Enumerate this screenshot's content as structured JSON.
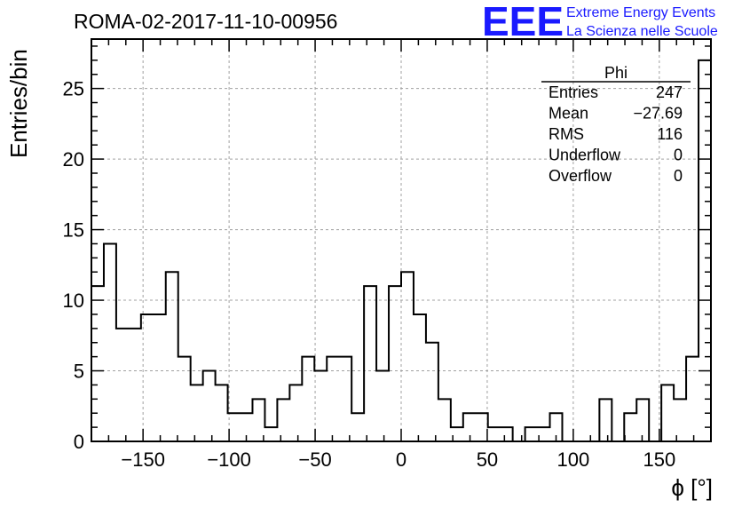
{
  "chart_data": {
    "type": "bar",
    "title": "ROMA-02-2017-11-10-00956",
    "xlabel": "ϕ [°]",
    "ylabel": "Entries/bin",
    "xlim": [
      -180,
      180
    ],
    "ylim": [
      0,
      28.5
    ],
    "bin_width": 7.2,
    "values": [
      11,
      14,
      8,
      8,
      9,
      9,
      12,
      6,
      4,
      5,
      4,
      2,
      2,
      3,
      1,
      3,
      4,
      6,
      5,
      6,
      6,
      2,
      11,
      5,
      11,
      12,
      9,
      7,
      3,
      1,
      2,
      2,
      1,
      1,
      0,
      1,
      1,
      2,
      0,
      0,
      0,
      3,
      0,
      2,
      3,
      0,
      4,
      3,
      6,
      27
    ],
    "x_ticks": [
      -150,
      -100,
      -50,
      0,
      50,
      100,
      150
    ],
    "x_tick_labels": [
      "−150",
      "−100",
      "−50",
      "0",
      "50",
      "100",
      "150"
    ],
    "y_ticks": [
      0,
      5,
      10,
      15,
      20,
      25
    ],
    "y_tick_labels": [
      "0",
      "5",
      "10",
      "15",
      "20",
      "25"
    ],
    "grid": true,
    "stats_box": {
      "title": "Phi",
      "placement": "top-right",
      "rows": [
        {
          "label": "Entries",
          "value": "247"
        },
        {
          "label": "Mean",
          "value": "−27.69"
        },
        {
          "label": "RMS",
          "value": "116"
        },
        {
          "label": "Underflow",
          "value": "0"
        },
        {
          "label": "Overflow",
          "value": "0"
        }
      ]
    },
    "colors": {
      "line": "#000000",
      "grid": "#a0a0a0",
      "brand": "#1a1aff"
    }
  },
  "brand": {
    "logo": "EEE",
    "line1": "Extreme Energy Events",
    "line2": "La Scienza nelle Scuole"
  }
}
